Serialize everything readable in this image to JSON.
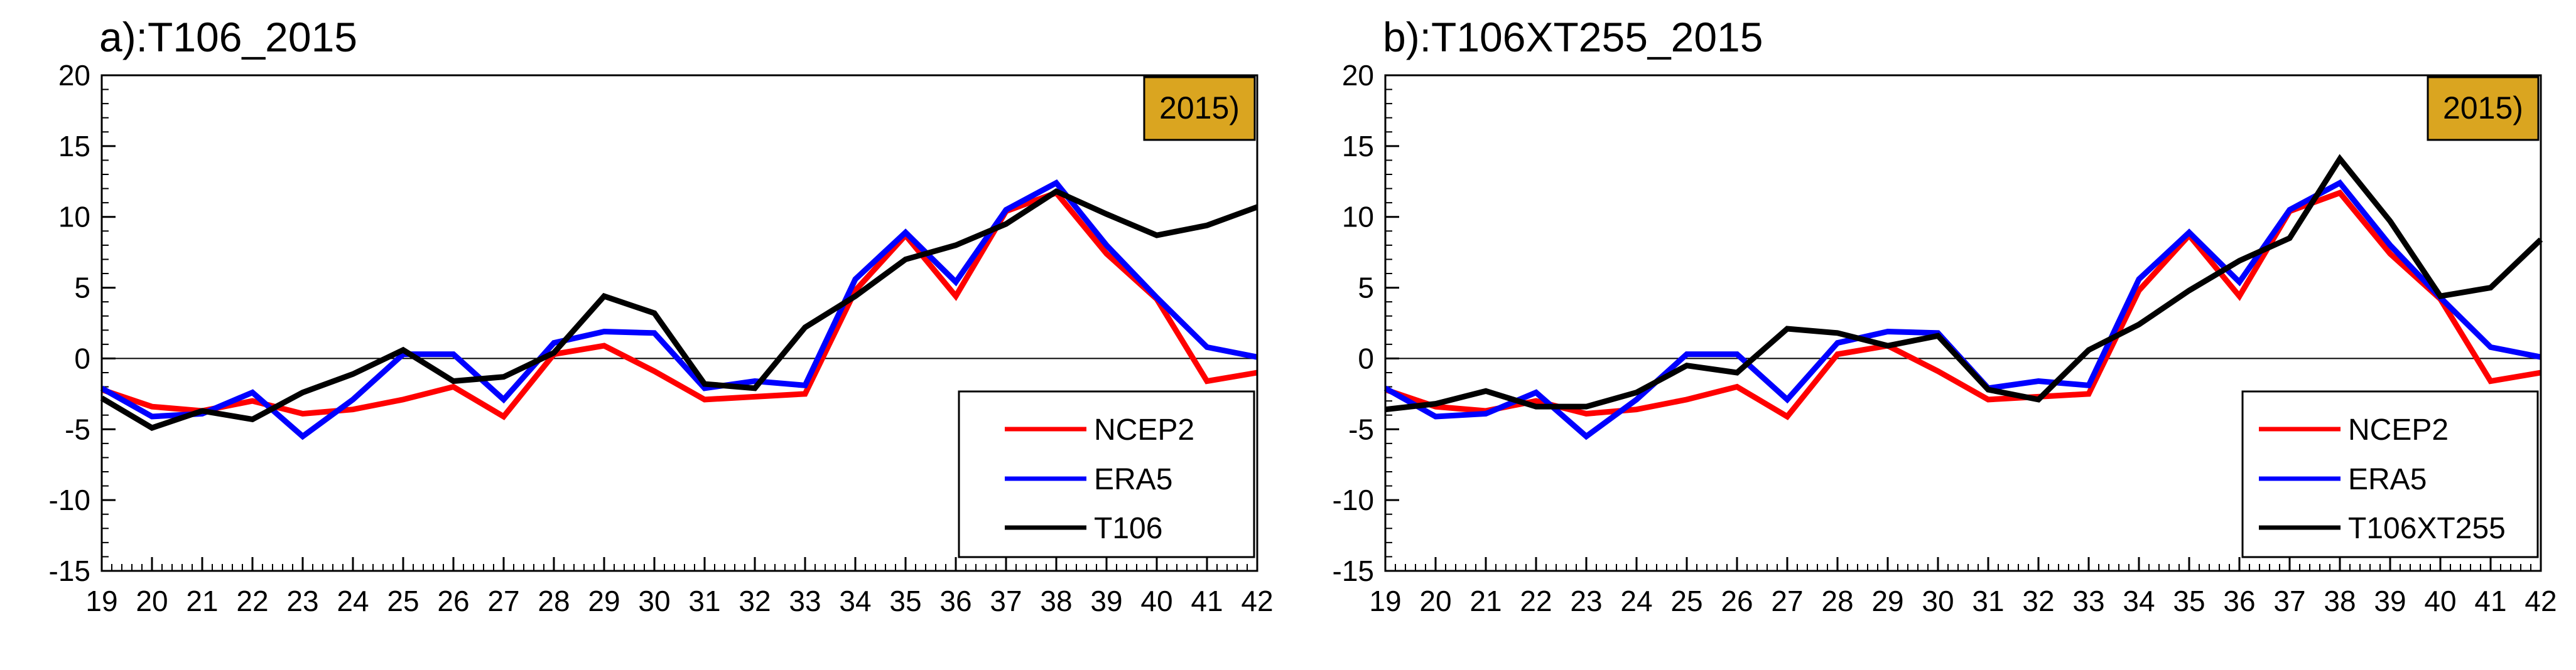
{
  "colors": {
    "NCEP2": "#ff0000",
    "ERA5": "#0000ff",
    "model": "#000000",
    "badge": "#daa520",
    "zero_line": "#000000"
  },
  "chart_data": [
    {
      "type": "line",
      "title": "a):T106_2015",
      "badge": "2015)",
      "x": [
        19,
        20,
        21,
        22,
        23,
        24,
        25,
        26,
        27,
        28,
        29,
        30,
        31,
        32,
        33,
        34,
        35,
        36,
        37,
        38,
        39,
        40,
        41,
        42
      ],
      "xticks": [
        "19",
        "20",
        "21",
        "22",
        "23",
        "24",
        "25",
        "26",
        "27",
        "28",
        "29",
        "30",
        "31",
        "32",
        "33",
        "34",
        "35",
        "36",
        "37",
        "38",
        "39",
        "40",
        "41",
        "42"
      ],
      "xlim": [
        19,
        42
      ],
      "yticks": [
        "20",
        "15",
        "10",
        "5",
        "0",
        "-5",
        "-10",
        "-15"
      ],
      "ylim": [
        -15,
        20
      ],
      "zero_line": true,
      "legend_position": "bottom-right",
      "series": [
        {
          "name": "NCEP2",
          "color_key": "NCEP2",
          "values": [
            -2.2,
            -3.4,
            -3.7,
            -3.0,
            -3.9,
            -3.6,
            -2.9,
            -2.0,
            -4.1,
            0.3,
            0.9,
            -0.9,
            -2.9,
            -2.7,
            -2.5,
            4.8,
            8.7,
            4.4,
            10.4,
            11.7,
            7.4,
            4.2,
            -1.6,
            -1.0
          ]
        },
        {
          "name": "ERA5",
          "color_key": "ERA5",
          "values": [
            -2.1,
            -4.1,
            -3.9,
            -2.4,
            -5.5,
            -2.9,
            0.3,
            0.3,
            -2.9,
            1.1,
            1.9,
            1.8,
            -2.1,
            -1.6,
            -1.9,
            5.6,
            8.9,
            5.4,
            10.5,
            12.4,
            8.0,
            4.3,
            0.8,
            0.1
          ]
        },
        {
          "name": "T106",
          "color_key": "model",
          "values": [
            -2.8,
            -4.9,
            -3.7,
            -4.3,
            -2.4,
            -1.1,
            0.6,
            -1.6,
            -1.3,
            0.4,
            4.4,
            3.2,
            -1.8,
            -2.1,
            2.2,
            4.4,
            7.0,
            8.0,
            9.5,
            11.8,
            10.2,
            8.7,
            9.4,
            10.7
          ]
        }
      ]
    },
    {
      "type": "line",
      "title": "b):T106XT255_2015",
      "badge": "2015)",
      "x": [
        19,
        20,
        21,
        22,
        23,
        24,
        25,
        26,
        27,
        28,
        29,
        30,
        31,
        32,
        33,
        34,
        35,
        36,
        37,
        38,
        39,
        40,
        41,
        42
      ],
      "xticks": [
        "19",
        "20",
        "21",
        "22",
        "23",
        "24",
        "25",
        "26",
        "27",
        "28",
        "29",
        "30",
        "31",
        "32",
        "33",
        "34",
        "35",
        "36",
        "37",
        "38",
        "39",
        "40",
        "41",
        "42"
      ],
      "xlim": [
        19,
        42
      ],
      "yticks": [
        "20",
        "15",
        "10",
        "5",
        "0",
        "-5",
        "-10",
        "-15"
      ],
      "ylim": [
        -15,
        20
      ],
      "zero_line": true,
      "legend_position": "bottom-right",
      "series": [
        {
          "name": "NCEP2",
          "color_key": "NCEP2",
          "values": [
            -2.2,
            -3.4,
            -3.7,
            -3.0,
            -3.9,
            -3.6,
            -2.9,
            -2.0,
            -4.1,
            0.3,
            0.9,
            -0.9,
            -2.9,
            -2.7,
            -2.5,
            4.8,
            8.7,
            4.4,
            10.4,
            11.7,
            7.4,
            4.2,
            -1.6,
            -1.0
          ]
        },
        {
          "name": "ERA5",
          "color_key": "ERA5",
          "values": [
            -2.1,
            -4.1,
            -3.9,
            -2.4,
            -5.5,
            -2.9,
            0.3,
            0.3,
            -2.9,
            1.1,
            1.9,
            1.8,
            -2.1,
            -1.6,
            -1.9,
            5.6,
            8.9,
            5.4,
            10.5,
            12.4,
            8.0,
            4.3,
            0.8,
            0.1
          ]
        },
        {
          "name": "T106XT255",
          "color_key": "model",
          "values": [
            -3.6,
            -3.2,
            -2.3,
            -3.4,
            -3.4,
            -2.4,
            -0.5,
            -1.0,
            2.1,
            1.8,
            0.9,
            1.6,
            -2.2,
            -2.9,
            0.6,
            2.4,
            4.8,
            6.9,
            8.5,
            14.1,
            9.7,
            4.4,
            5.0,
            8.4
          ]
        }
      ]
    }
  ]
}
